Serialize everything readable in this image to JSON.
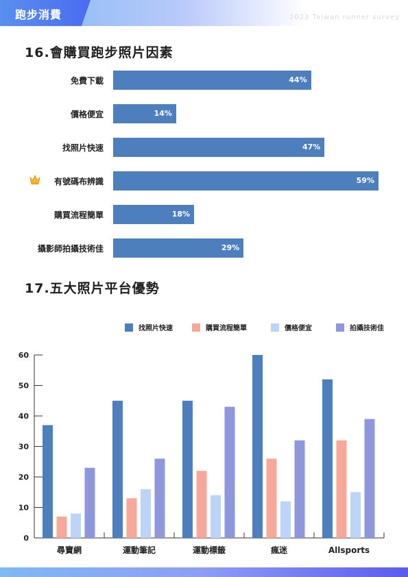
{
  "header": {
    "title": "跑步消費",
    "subtitle": "2023 Taiwan runner survey"
  },
  "section16": {
    "title": "16.會購買跑步照片因素"
  },
  "section17": {
    "title": "17.五大照片平台優勢"
  },
  "chart_data": [
    {
      "type": "bar",
      "orientation": "horizontal",
      "title": "16.會購買跑步照片因素",
      "categories": [
        "免費下載",
        "價格便宜",
        "找照片快速",
        "有號碼布辨識",
        "購買流程簡單",
        "攝影師拍攝技術佳"
      ],
      "values": [
        44,
        14,
        47,
        59,
        18,
        29
      ],
      "value_labels": [
        "44%",
        "14%",
        "47%",
        "59%",
        "18%",
        "29%"
      ],
      "unit": "%",
      "highlight_icon": {
        "category": "有號碼布辨識",
        "icon": "crown-icon"
      },
      "bar_color": "#4d7fbf",
      "grid": false
    },
    {
      "type": "bar",
      "title": "17.五大照片平台優勢",
      "categories": [
        "尋寶網",
        "運動筆記",
        "運動標籤",
        "瘋迷",
        "Allsports"
      ],
      "series": [
        {
          "name": "找照片快速",
          "color": "#4d7fbf",
          "values": [
            37,
            45,
            45,
            60,
            52
          ]
        },
        {
          "name": "購買流程簡單",
          "color": "#f8a898",
          "values": [
            7,
            13,
            22,
            26,
            32
          ]
        },
        {
          "name": "價格便宜",
          "color": "#bcd4f8",
          "values": [
            8,
            16,
            14,
            12,
            15
          ]
        },
        {
          "name": "拍攝技術佳",
          "color": "#8f97dc",
          "values": [
            23,
            26,
            43,
            32,
            39
          ]
        }
      ],
      "ylim": [
        0,
        60
      ],
      "yticks": [
        0,
        10,
        20,
        30,
        40,
        50,
        60
      ],
      "legend": "top",
      "grid": false
    }
  ]
}
